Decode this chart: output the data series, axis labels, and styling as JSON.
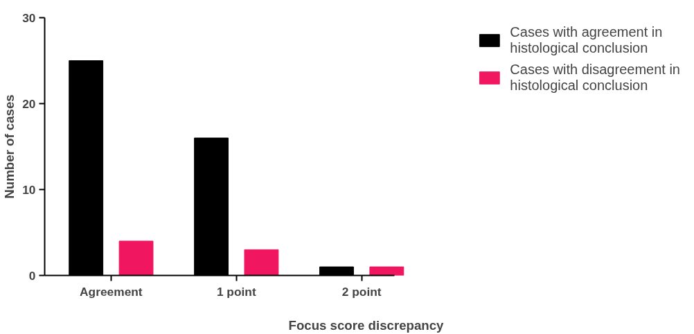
{
  "chart_data": {
    "type": "bar",
    "xlabel": "Focus score discrepancy",
    "ylabel": "Number of cases",
    "categories": [
      "Agreement",
      "1 point",
      "2 point"
    ],
    "series": [
      {
        "name": "Cases with agreement in histological conclusion",
        "color": "#000000",
        "values": [
          25,
          16,
          1
        ]
      },
      {
        "name": "Cases with disagreement in histological conclusion",
        "color": "#f0165f",
        "values": [
          4,
          3,
          1
        ]
      }
    ],
    "ylim": [
      0,
      30
    ],
    "yticks": [
      0,
      10,
      20,
      30
    ],
    "grid": false,
    "legend": "top right"
  }
}
